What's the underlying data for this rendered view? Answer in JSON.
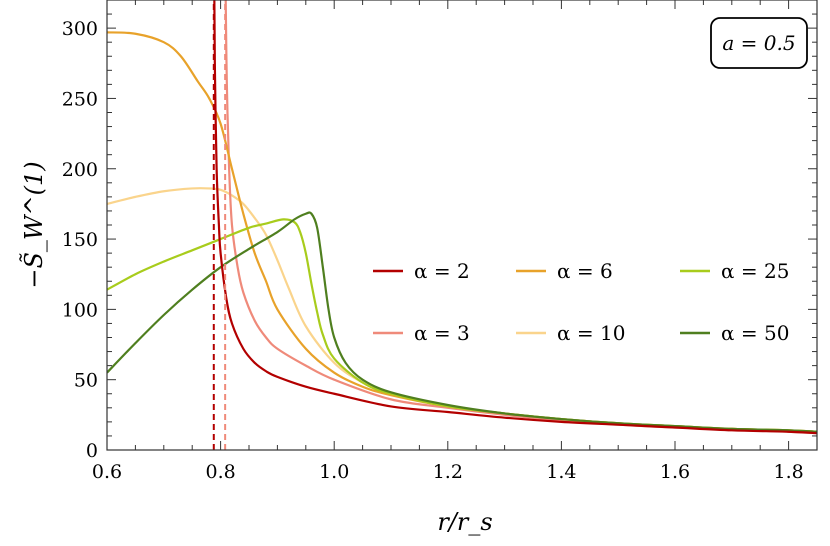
{
  "chart_data": {
    "type": "line",
    "title": "",
    "xlabel": "r/r_s",
    "ylabel": "−S̃_W^(1)",
    "xlim": [
      0.6,
      1.85
    ],
    "ylim": [
      0,
      320
    ],
    "xticks": [
      "0.6",
      "0.8",
      "1.0",
      "1.2",
      "1.4",
      "1.6",
      "1.8"
    ],
    "xtick_values": [
      0.6,
      0.8,
      1.0,
      1.2,
      1.4,
      1.6,
      1.8
    ],
    "yticks": [
      "0",
      "50",
      "100",
      "150",
      "200",
      "250",
      "300"
    ],
    "ytick_values": [
      0,
      50,
      100,
      150,
      200,
      250,
      300
    ],
    "grid": false,
    "legend_placement": "center-right",
    "annotation": "a = 0.5",
    "series": [
      {
        "name": "α = 2",
        "color": "#b30000",
        "asymptote": 0.788,
        "x": [
          0.789,
          0.79,
          0.793,
          0.797,
          0.8,
          0.81,
          0.82,
          0.84,
          0.86,
          0.88,
          0.9,
          0.95,
          1.0,
          1.1,
          1.2,
          1.3,
          1.4,
          1.5,
          1.6,
          1.7,
          1.8,
          1.85
        ],
        "values": [
          320,
          270,
          200,
          160,
          140,
          108,
          90,
          72,
          62,
          56,
          52,
          45,
          40,
          31,
          27,
          23,
          20,
          18,
          16,
          14,
          13,
          12
        ]
      },
      {
        "name": "α = 3",
        "color": "#ef8a7a",
        "asymptote": 0.808,
        "x": [
          0.809,
          0.811,
          0.815,
          0.82,
          0.83,
          0.84,
          0.86,
          0.88,
          0.9,
          0.95,
          1.0,
          1.1,
          1.2,
          1.3,
          1.4,
          1.5,
          1.6,
          1.7,
          1.8,
          1.85
        ],
        "values": [
          320,
          260,
          200,
          160,
          130,
          112,
          92,
          80,
          72,
          60,
          50,
          36,
          30,
          25,
          21,
          18,
          16,
          15,
          13,
          12
        ]
      },
      {
        "name": "α = 6",
        "color": "#e8a22a",
        "x": [
          0.6,
          0.65,
          0.7,
          0.73,
          0.76,
          0.78,
          0.8,
          0.82,
          0.84,
          0.86,
          0.88,
          0.9,
          0.95,
          1.0,
          1.05,
          1.1,
          1.2,
          1.3,
          1.4,
          1.5,
          1.6,
          1.7,
          1.8,
          1.85
        ],
        "values": [
          297,
          296,
          290,
          280,
          262,
          250,
          232,
          200,
          168,
          140,
          120,
          100,
          72,
          55,
          45,
          39,
          31,
          26,
          22,
          19,
          17,
          15,
          14,
          13
        ]
      },
      {
        "name": "α = 10",
        "color": "#fad48c",
        "x": [
          0.6,
          0.65,
          0.7,
          0.75,
          0.78,
          0.8,
          0.82,
          0.84,
          0.86,
          0.88,
          0.9,
          0.92,
          0.95,
          1.0,
          1.05,
          1.1,
          1.2,
          1.3,
          1.4,
          1.5,
          1.6,
          1.7,
          1.8,
          1.85
        ],
        "values": [
          175,
          180,
          184,
          186,
          186,
          185,
          181,
          175,
          165,
          153,
          135,
          115,
          88,
          62,
          48,
          40,
          31,
          26,
          22,
          19,
          17,
          15,
          14,
          13
        ]
      },
      {
        "name": "α = 25",
        "color": "#a8cc1c",
        "x": [
          0.6,
          0.65,
          0.7,
          0.75,
          0.8,
          0.85,
          0.88,
          0.91,
          0.93,
          0.94,
          0.95,
          0.96,
          0.97,
          0.98,
          1.0,
          1.05,
          1.1,
          1.2,
          1.3,
          1.4,
          1.5,
          1.6,
          1.7,
          1.8,
          1.85
        ],
        "values": [
          114,
          125,
          134,
          142,
          150,
          158,
          161,
          164,
          162,
          155,
          140,
          118,
          98,
          82,
          65,
          48,
          40,
          31,
          26,
          22,
          19,
          17,
          15,
          14,
          13
        ]
      },
      {
        "name": "α = 50",
        "color": "#4f7f1f",
        "x": [
          0.6,
          0.65,
          0.7,
          0.75,
          0.8,
          0.85,
          0.9,
          0.93,
          0.95,
          0.96,
          0.97,
          0.98,
          0.99,
          1.0,
          1.02,
          1.05,
          1.1,
          1.2,
          1.3,
          1.4,
          1.5,
          1.6,
          1.7,
          1.8,
          1.85
        ],
        "values": [
          55,
          76,
          96,
          114,
          130,
          143,
          155,
          164,
          168,
          168,
          158,
          130,
          100,
          80,
          62,
          50,
          41,
          32,
          26,
          22,
          19,
          17,
          15,
          14,
          13
        ]
      }
    ],
    "legend_order": [
      0,
      2,
      4,
      1,
      3,
      5
    ]
  }
}
